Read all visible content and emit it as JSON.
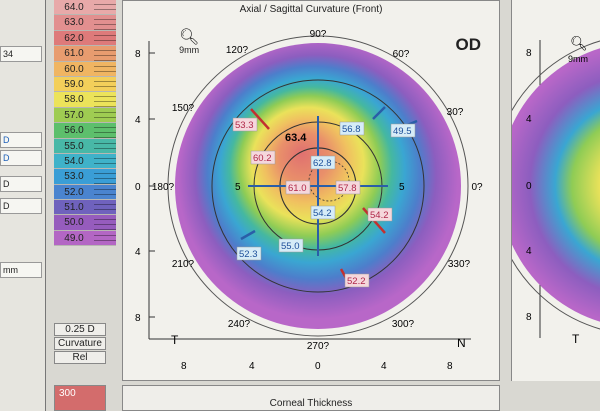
{
  "left_panel": {
    "boxes": [
      {
        "text": "34",
        "style": ""
      },
      {
        "text": "D",
        "style": "blue"
      },
      {
        "text": "D",
        "style": "blue"
      },
      {
        "text": "D",
        "style": ""
      },
      {
        "text": "D",
        "style": ""
      },
      {
        "text": "mm",
        "style": ""
      }
    ]
  },
  "color_scale": {
    "steps": [
      {
        "label": "64.0",
        "color": "#e8a9a9"
      },
      {
        "label": "63.0",
        "color": "#e28f8f"
      },
      {
        "label": "62.0",
        "color": "#de7a7a"
      },
      {
        "label": "61.0",
        "color": "#e89c6f"
      },
      {
        "label": "60.0",
        "color": "#f0b562"
      },
      {
        "label": "59.0",
        "color": "#f3cf5a"
      },
      {
        "label": "58.0",
        "color": "#ece35a"
      },
      {
        "label": "57.0",
        "color": "#9fcc52"
      },
      {
        "label": "56.0",
        "color": "#5dbf6c"
      },
      {
        "label": "55.0",
        "color": "#48b8a7"
      },
      {
        "label": "54.0",
        "color": "#3fb2c9"
      },
      {
        "label": "53.0",
        "color": "#3a9ed6"
      },
      {
        "label": "52.0",
        "color": "#4a84cf"
      },
      {
        "label": "51.0",
        "color": "#6f62bd"
      },
      {
        "label": "50.0",
        "color": "#965cbd"
      },
      {
        "label": "49.0",
        "color": "#b366c4"
      }
    ],
    "step": "0.25 D",
    "type": "Curvature",
    "mode": "Rel"
  },
  "map": {
    "title": "Axial / Sagittal Curvature (Front)",
    "eye": "OD",
    "zoom": "9mm",
    "degree_labels": [
      "90?",
      "60?",
      "30?",
      "0?",
      "330?",
      "300?",
      "270?",
      "240?",
      "210?",
      "180?",
      "150?",
      "120?"
    ],
    "axis_ticks_x": [
      "8",
      "4",
      "0",
      "4",
      "8"
    ],
    "axis_ticks_y": [
      "8",
      "4",
      "0",
      "4",
      "8"
    ],
    "ring_labels": [
      "5",
      "5"
    ],
    "temporal": "T",
    "nasal": "N",
    "max_value": "63.4",
    "values": {
      "v533": "53.3",
      "v602": "60.2",
      "v568": "56.8",
      "v495": "49.5",
      "v628": "62.8",
      "v610": "61.0",
      "v578": "57.8",
      "v542a": "54.2",
      "v542b": "54.2",
      "v550": "55.0",
      "v523": "52.3",
      "v522": "52.2"
    }
  },
  "right_map": {
    "zoom": "9mm",
    "ticks_y": [
      "8",
      "4",
      "0",
      "4",
      "8"
    ],
    "temporal": "T"
  },
  "bottom": {
    "title": "Corneal Thickness",
    "thickness_value": "300"
  }
}
